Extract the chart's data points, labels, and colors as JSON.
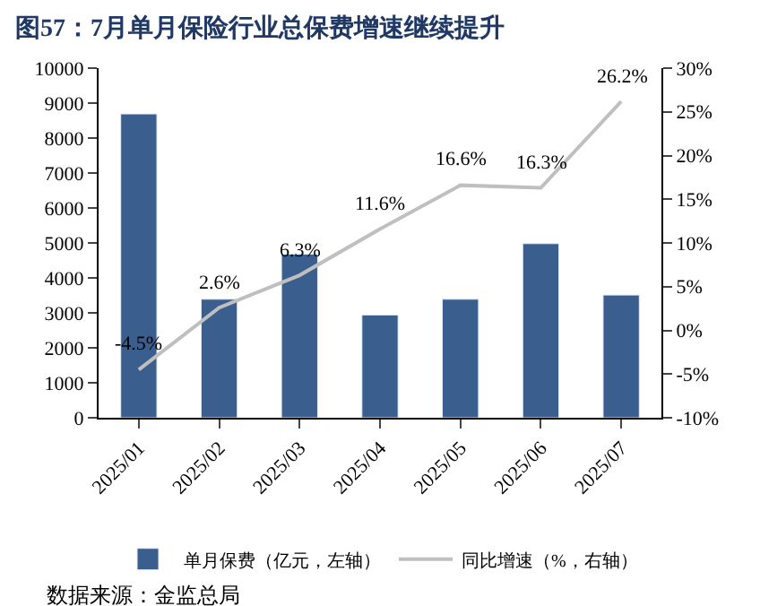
{
  "chart_data": {
    "type": "bar",
    "title": "图57：7月单月保险行业总保费增速继续提升",
    "categories": [
      "2025/01",
      "2025/02",
      "2025/03",
      "2025/04",
      "2025/05",
      "2025/06",
      "2025/07"
    ],
    "series": [
      {
        "name": "单月保费（亿元，左轴）",
        "color": "#3a5f8f",
        "values": [
          8690,
          3390,
          4680,
          2940,
          3390,
          4980,
          3510
        ]
      },
      {
        "name": "同比增速（%，右轴）",
        "type": "line",
        "axis": "y2",
        "color": "#bfbfbf",
        "marker": "none",
        "line_style": "solid",
        "values": [
          -4.5,
          2.6,
          6.3,
          11.6,
          16.6,
          16.3,
          26.2
        ],
        "value_labels": [
          "-4.5%",
          "2.6%",
          "6.3%",
          "11.6%",
          "16.6%",
          "16.3%",
          "26.2%"
        ]
      }
    ],
    "ylim": [
      0,
      10000
    ],
    "yticks": [
      0,
      1000,
      2000,
      3000,
      4000,
      5000,
      6000,
      7000,
      8000,
      9000,
      10000
    ],
    "y2lim": [
      -10,
      30
    ],
    "y2ticks": [
      {
        "value": -10,
        "label": "-10%"
      },
      {
        "value": -5,
        "label": "-5%"
      },
      {
        "value": 0,
        "label": "0%"
      },
      {
        "value": 5,
        "label": "5%"
      },
      {
        "value": 10,
        "label": "10%"
      },
      {
        "value": 15,
        "label": "15%"
      },
      {
        "value": 20,
        "label": "20%"
      },
      {
        "value": 25,
        "label": "25%"
      },
      {
        "value": 30,
        "label": "30%"
      }
    ],
    "legend": "bottom",
    "annotations": [
      "数据来源：金监总局"
    ]
  }
}
